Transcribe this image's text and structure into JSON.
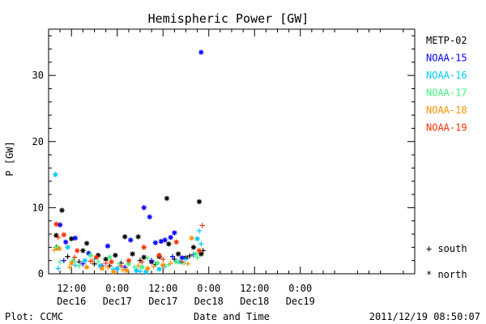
{
  "chart_data": {
    "type": "scatter",
    "title": "Hemispheric Power [GW]",
    "xlabel": "Date and Time",
    "ylabel": "P [GW]",
    "x_unit": "hours after 2011-12-16 00:00",
    "xlim": [
      6,
      102
    ],
    "ylim": [
      0,
      37
    ],
    "y_ticks": [
      0,
      10,
      20,
      30
    ],
    "x_ticks": [
      {
        "x": 12,
        "top": "12:00",
        "bottom": "Dec16"
      },
      {
        "x": 24,
        "top": "0:00",
        "bottom": "Dec17"
      },
      {
        "x": 36,
        "top": "12:00",
        "bottom": "Dec17"
      },
      {
        "x": 48,
        "top": "0:00",
        "bottom": "Dec18"
      },
      {
        "x": 60,
        "top": "12:00",
        "bottom": "Dec18"
      },
      {
        "x": 72,
        "top": "0:00",
        "bottom": "Dec19"
      }
    ],
    "legend_placement": "right",
    "marker_legend": {
      "south": "+ south",
      "north": "* north"
    },
    "series": [
      {
        "name": "METP-02",
        "color": "#000000",
        "north": [
          [
            8,
            5.8
          ],
          [
            9.5,
            9.6
          ],
          [
            12,
            5.3
          ],
          [
            15,
            3.5
          ],
          [
            16,
            4.6
          ],
          [
            19,
            2.8
          ],
          [
            21,
            2.2
          ],
          [
            23.5,
            2.8
          ],
          [
            26,
            5.6
          ],
          [
            28,
            3.0
          ],
          [
            29.5,
            5.6
          ],
          [
            31,
            2.5
          ],
          [
            33,
            1.8
          ],
          [
            35,
            2.6
          ],
          [
            37,
            11.4
          ],
          [
            37.5,
            4.5
          ],
          [
            40,
            3.0
          ],
          [
            42,
            2.4
          ],
          [
            44,
            4.0
          ],
          [
            45.5,
            10.9
          ],
          [
            46,
            3.0
          ]
        ],
        "south": [
          [
            8,
            4.0
          ],
          [
            11,
            2.6
          ],
          [
            14,
            1.8
          ],
          [
            18,
            1.5
          ],
          [
            22,
            1.2
          ],
          [
            25,
            1.6
          ],
          [
            30,
            2.0
          ],
          [
            34,
            1.4
          ],
          [
            39,
            2.2
          ],
          [
            43,
            2.7
          ],
          [
            46.5,
            3.5
          ]
        ]
      },
      {
        "name": "NOAA-15",
        "color": "#0000ff",
        "north": [
          [
            9,
            7.4
          ],
          [
            10.5,
            4.8
          ],
          [
            13,
            5.4
          ],
          [
            16.5,
            3.1
          ],
          [
            21.5,
            4.2
          ],
          [
            27.5,
            5.1
          ],
          [
            31,
            10.0
          ],
          [
            32.5,
            8.6
          ],
          [
            34,
            4.7
          ],
          [
            35.5,
            4.9
          ],
          [
            36.5,
            5.1
          ],
          [
            38,
            5.5
          ],
          [
            39,
            6.2
          ],
          [
            41,
            2.4
          ],
          [
            46,
            33.5
          ]
        ],
        "south": [
          [
            10,
            2.0
          ],
          [
            15,
            1.5
          ],
          [
            20,
            1.2
          ],
          [
            26,
            1.0
          ],
          [
            33,
            2.0
          ],
          [
            38.5,
            2.6
          ],
          [
            44,
            2.9
          ]
        ]
      },
      {
        "name": "NOAA-16",
        "color": "#00c8ff",
        "north": [
          [
            7.8,
            15.0
          ],
          [
            11,
            4.0
          ],
          [
            15.5,
            2.0
          ],
          [
            19.5,
            1.2
          ],
          [
            24,
            0.8
          ],
          [
            29,
            0.5
          ],
          [
            31.5,
            0.3
          ],
          [
            35,
            0.7
          ],
          [
            40.5,
            1.8
          ],
          [
            45,
            5.3
          ]
        ],
        "south": [
          [
            8.5,
            0.8
          ],
          [
            13,
            1.3
          ],
          [
            18,
            2.2
          ],
          [
            23,
            0.7
          ],
          [
            30,
            0.4
          ],
          [
            36.5,
            1.1
          ],
          [
            42,
            2.2
          ],
          [
            45.5,
            6.5
          ],
          [
            46,
            4.5
          ]
        ]
      },
      {
        "name": "NOAA-17",
        "color": "#40f080",
        "north": [
          [
            8.2,
            4.0
          ],
          [
            12.5,
            2.0
          ],
          [
            17,
            2.8
          ],
          [
            22,
            2.5
          ],
          [
            27,
            1.5
          ],
          [
            30.5,
            1.0
          ],
          [
            34.5,
            1.6
          ],
          [
            39.5,
            1.8
          ],
          [
            44.5,
            3.0
          ]
        ],
        "south": [
          [
            9,
            1.8
          ],
          [
            14,
            1.2
          ],
          [
            19,
            1.8
          ],
          [
            24.5,
            1.5
          ],
          [
            28.5,
            1.0
          ],
          [
            32,
            2.4
          ],
          [
            37.5,
            1.4
          ],
          [
            41.5,
            1.6
          ],
          [
            45,
            2.5
          ]
        ]
      },
      {
        "name": "NOAA-18",
        "color": "#ff9000",
        "north": [
          [
            8.8,
            3.8
          ],
          [
            12,
            1.6
          ],
          [
            16,
            1.0
          ],
          [
            20,
            0.8
          ],
          [
            23,
            0.3
          ],
          [
            26.5,
            0.5
          ],
          [
            32,
            0.8
          ],
          [
            36,
            1.3
          ],
          [
            43.5,
            5.4
          ]
        ],
        "south": [
          [
            7.5,
            3.6
          ],
          [
            11.5,
            1.0
          ],
          [
            17.5,
            1.9
          ],
          [
            21.5,
            1.0
          ],
          [
            25.5,
            0.6
          ],
          [
            29.5,
            1.2
          ],
          [
            33.5,
            1.1
          ],
          [
            38,
            1.6
          ],
          [
            42.5,
            1.5
          ]
        ]
      },
      {
        "name": "NOAA-19",
        "color": "#ff3000",
        "north": [
          [
            8,
            7.5
          ],
          [
            10,
            5.9
          ],
          [
            13.5,
            3.5
          ],
          [
            18.5,
            2.5
          ],
          [
            22.5,
            1.8
          ],
          [
            27,
            2.0
          ],
          [
            31,
            4.0
          ],
          [
            35,
            2.8
          ],
          [
            39.5,
            4.8
          ],
          [
            45.5,
            3.5
          ]
        ],
        "south": [
          [
            8.5,
            5.5
          ],
          [
            12.8,
            2.5
          ],
          [
            17,
            1.9
          ],
          [
            21,
            1.6
          ],
          [
            25,
            1.2
          ],
          [
            30.5,
            1.8
          ],
          [
            36,
            2.2
          ],
          [
            41,
            1.8
          ],
          [
            46.3,
            7.3
          ]
        ]
      }
    ]
  },
  "footer": {
    "left": "Plot: CCMC",
    "center": "Date and Time",
    "right": "2011/12/19 08:50:07"
  }
}
